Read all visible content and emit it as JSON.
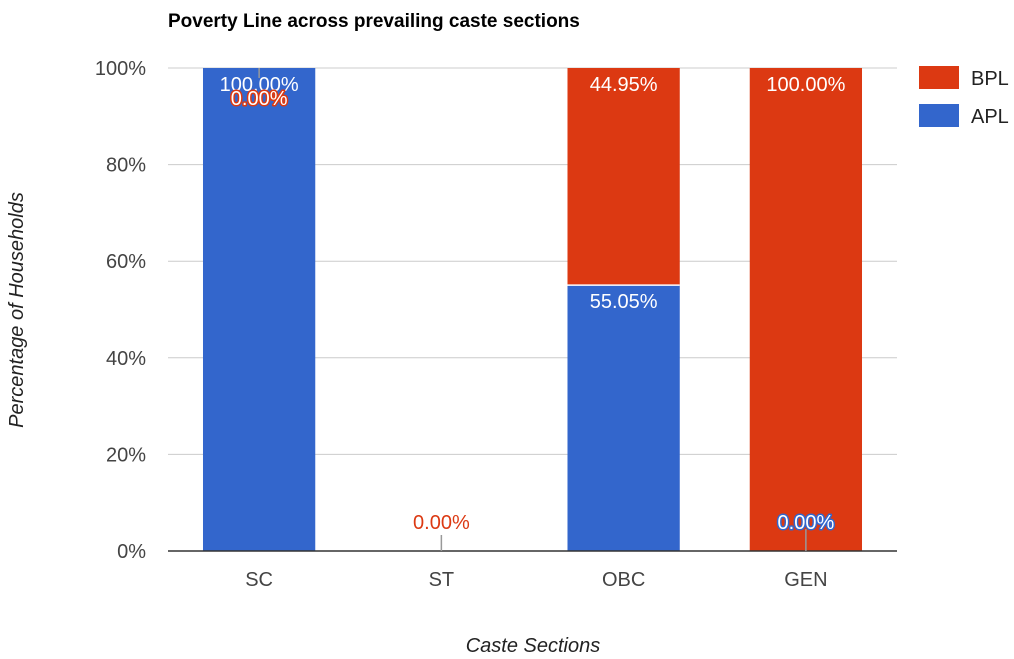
{
  "chart_data": {
    "type": "bar",
    "stacked": true,
    "title": "Poverty Line across prevailing caste sections",
    "xlabel": "Caste Sections",
    "ylabel": "Percentage of Households",
    "categories": [
      "SC",
      "ST",
      "OBC",
      "GEN"
    ],
    "series": [
      {
        "name": "APL",
        "color": "#3366cc",
        "values": [
          100.0,
          0.0,
          55.05,
          0.0
        ],
        "labels": [
          "100.00%",
          "",
          "55.05%",
          "0.00%"
        ]
      },
      {
        "name": "BPL",
        "color": "#dc3912",
        "values": [
          0.0,
          0.0,
          44.95,
          100.0
        ],
        "labels": [
          "0.00%",
          "0.00%",
          "44.95%",
          "100.00%"
        ]
      }
    ],
    "legend_order": [
      "BPL",
      "APL"
    ],
    "y_ticks": [
      "0%",
      "20%",
      "40%",
      "60%",
      "80%",
      "100%"
    ],
    "ylim": [
      0,
      100
    ],
    "grid": true,
    "legend_position": "top-right"
  }
}
